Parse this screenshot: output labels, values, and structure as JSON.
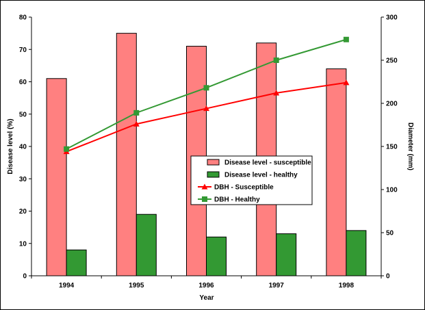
{
  "chart_data": {
    "type": "bar",
    "categories": [
      "1994",
      "1995",
      "1996",
      "1997",
      "1998"
    ],
    "xlabel": "Year",
    "ylabel": "Disease level (%)",
    "y2label": "Diameter (mm)",
    "ylim": [
      0,
      80
    ],
    "y2lim": [
      0,
      300
    ],
    "yticks": [
      "0",
      "10",
      "20",
      "30",
      "40",
      "50",
      "60",
      "70",
      "80"
    ],
    "y2ticks": [
      "0",
      "50",
      "100",
      "150",
      "200",
      "250",
      "300"
    ],
    "grid": false,
    "legend_position": "center-right",
    "series": [
      {
        "name": "Disease level - susceptible",
        "kind": "bar",
        "axis": "left",
        "color": "#FF8080",
        "values": [
          61,
          75,
          71,
          72,
          64
        ]
      },
      {
        "name": "Disease level - healthy",
        "kind": "bar",
        "axis": "left",
        "color": "#339933",
        "values": [
          8,
          19,
          12,
          13,
          14
        ]
      },
      {
        "name": "DBH - Susceptible",
        "kind": "line",
        "marker": "triangle",
        "axis": "right",
        "color": "#FF0000",
        "values": [
          144,
          176,
          194,
          212,
          224
        ]
      },
      {
        "name": "DBH - Healthy",
        "kind": "line",
        "marker": "square",
        "axis": "right",
        "color": "#339933",
        "values": [
          147,
          189,
          218,
          250,
          274
        ]
      }
    ]
  }
}
